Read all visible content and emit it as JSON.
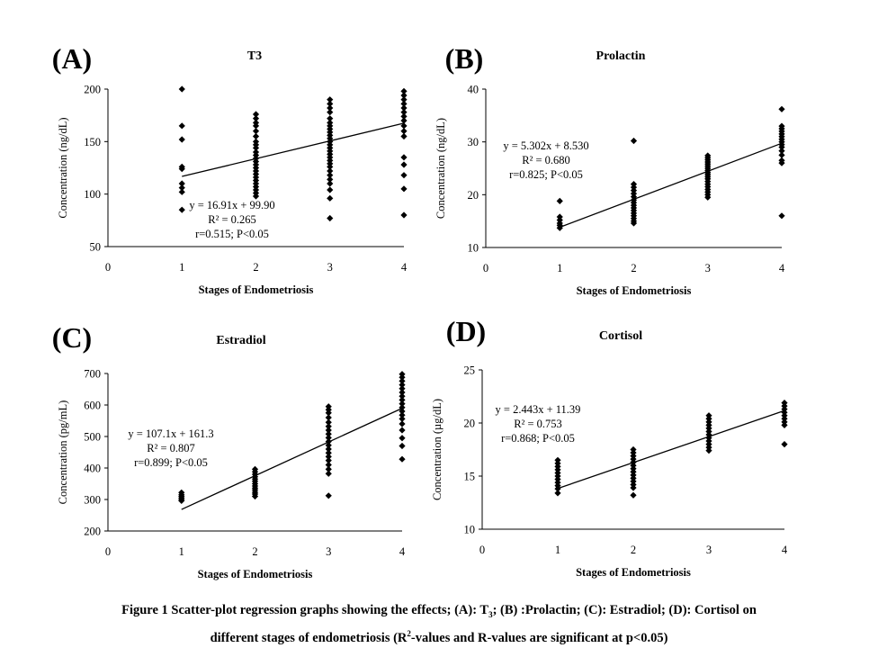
{
  "figure": {
    "caption_line1_a": "Figure 1 Scatter-plot regression graphs showing the effects;  (A): T",
    "caption_line1_sub": "3",
    "caption_line1_b": "; (B) :Prolactin; (C): Estradiol; (D): Cortisol on",
    "caption_line2_a": "different stages of endometriosis (R",
    "caption_line2_sup": "2",
    "caption_line2_b": "-values and R-values are significant at p<0.05)"
  },
  "chart_data": [
    {
      "type": "scatter",
      "panel_label": "(A)",
      "title": "T3",
      "xlabel": "Stages of Endometriosis",
      "ylabel": "Concentration (ng/dL)",
      "xlim": [
        0,
        4
      ],
      "ylim": [
        50,
        200
      ],
      "xticks": [
        0,
        1,
        2,
        3,
        4
      ],
      "yticks": [
        50,
        100,
        150,
        200
      ],
      "points": [
        [
          1,
          200
        ],
        [
          1,
          165
        ],
        [
          1,
          152
        ],
        [
          1,
          126
        ],
        [
          1,
          124
        ],
        [
          1,
          110
        ],
        [
          1,
          106
        ],
        [
          1,
          102
        ],
        [
          1,
          85
        ],
        [
          2,
          176
        ],
        [
          2,
          172
        ],
        [
          2,
          168
        ],
        [
          2,
          165
        ],
        [
          2,
          160
        ],
        [
          2,
          155
        ],
        [
          2,
          150
        ],
        [
          2,
          147
        ],
        [
          2,
          144
        ],
        [
          2,
          140
        ],
        [
          2,
          137
        ],
        [
          2,
          134
        ],
        [
          2,
          131
        ],
        [
          2,
          128
        ],
        [
          2,
          125
        ],
        [
          2,
          122
        ],
        [
          2,
          119
        ],
        [
          2,
          116
        ],
        [
          2,
          113
        ],
        [
          2,
          110
        ],
        [
          2,
          107
        ],
        [
          2,
          104
        ],
        [
          2,
          101
        ],
        [
          2,
          98
        ],
        [
          3,
          190
        ],
        [
          3,
          186
        ],
        [
          3,
          182
        ],
        [
          3,
          178
        ],
        [
          3,
          172
        ],
        [
          3,
          168
        ],
        [
          3,
          165
        ],
        [
          3,
          162
        ],
        [
          3,
          159
        ],
        [
          3,
          156
        ],
        [
          3,
          153
        ],
        [
          3,
          150
        ],
        [
          3,
          147
        ],
        [
          3,
          144
        ],
        [
          3,
          141
        ],
        [
          3,
          138
        ],
        [
          3,
          135
        ],
        [
          3,
          132
        ],
        [
          3,
          129
        ],
        [
          3,
          126
        ],
        [
          3,
          122
        ],
        [
          3,
          118
        ],
        [
          3,
          114
        ],
        [
          3,
          110
        ],
        [
          3,
          104
        ],
        [
          3,
          96
        ],
        [
          3,
          77
        ],
        [
          4,
          198
        ],
        [
          4,
          194
        ],
        [
          4,
          190
        ],
        [
          4,
          186
        ],
        [
          4,
          182
        ],
        [
          4,
          178
        ],
        [
          4,
          174
        ],
        [
          4,
          170
        ],
        [
          4,
          165
        ],
        [
          4,
          160
        ],
        [
          4,
          155
        ],
        [
          4,
          135
        ],
        [
          4,
          128
        ],
        [
          4,
          118
        ],
        [
          4,
          105
        ],
        [
          4,
          80
        ]
      ],
      "trendline": {
        "slope": 16.91,
        "intercept": 99.9,
        "x_range": [
          1,
          4
        ]
      },
      "annotations": [
        "y = 16.91x + 99.90",
        "R² = 0.265",
        "r=0.515; P<0.05"
      ]
    },
    {
      "type": "scatter",
      "panel_label": "(B)",
      "title": "Prolactin",
      "xlabel": "Stages of Endometriosis",
      "ylabel": "Concentration (ng/dL)",
      "xlim": [
        0,
        4
      ],
      "ylim": [
        10,
        40
      ],
      "xticks": [
        0,
        1,
        2,
        3,
        4
      ],
      "yticks": [
        10,
        20,
        30,
        40
      ],
      "points": [
        [
          1,
          18.8
        ],
        [
          1,
          15.8
        ],
        [
          1,
          15.2
        ],
        [
          1,
          14.6
        ],
        [
          1,
          14.2
        ],
        [
          1,
          13.7
        ],
        [
          2,
          30.2
        ],
        [
          2,
          22
        ],
        [
          2,
          21.4
        ],
        [
          2,
          20.8
        ],
        [
          2,
          20.2
        ],
        [
          2,
          19.6
        ],
        [
          2,
          19
        ],
        [
          2,
          18.5
        ],
        [
          2,
          18
        ],
        [
          2,
          17.5
        ],
        [
          2,
          17
        ],
        [
          2,
          16.5
        ],
        [
          2,
          16
        ],
        [
          2,
          15.5
        ],
        [
          2,
          15
        ],
        [
          2,
          14.6
        ],
        [
          3,
          27.4
        ],
        [
          3,
          27
        ],
        [
          3,
          26.6
        ],
        [
          3,
          26.2
        ],
        [
          3,
          25.8
        ],
        [
          3,
          25.4
        ],
        [
          3,
          25
        ],
        [
          3,
          24.6
        ],
        [
          3,
          24.2
        ],
        [
          3,
          23.8
        ],
        [
          3,
          23.4
        ],
        [
          3,
          23
        ],
        [
          3,
          22.5
        ],
        [
          3,
          22
        ],
        [
          3,
          21.5
        ],
        [
          3,
          21
        ],
        [
          3,
          20.5
        ],
        [
          3,
          20
        ],
        [
          3,
          19.5
        ],
        [
          4,
          36.2
        ],
        [
          4,
          33
        ],
        [
          4,
          32.5
        ],
        [
          4,
          32
        ],
        [
          4,
          31.5
        ],
        [
          4,
          31
        ],
        [
          4,
          30.5
        ],
        [
          4,
          30
        ],
        [
          4,
          29.5
        ],
        [
          4,
          29
        ],
        [
          4,
          28.3
        ],
        [
          4,
          27.5
        ],
        [
          4,
          26.5
        ],
        [
          4,
          26
        ],
        [
          4,
          16
        ]
      ],
      "trendline": {
        "slope": 5.302,
        "intercept": 8.53,
        "x_range": [
          1,
          4
        ]
      },
      "annotations": [
        "y = 5.302x + 8.530",
        "R² = 0.680",
        "r=0.825;  P<0.05"
      ]
    },
    {
      "type": "scatter",
      "panel_label": "(C)",
      "title": "Estradiol",
      "xlabel": "Stages of Endometriosis",
      "ylabel": "Concentration (pg/mL)",
      "xlim": [
        0,
        4
      ],
      "ylim": [
        200,
        700
      ],
      "xticks": [
        0,
        1,
        2,
        3,
        4
      ],
      "yticks": [
        200,
        300,
        400,
        500,
        600,
        700
      ],
      "points": [
        [
          1,
          322
        ],
        [
          1,
          315
        ],
        [
          1,
          310
        ],
        [
          1,
          305
        ],
        [
          1,
          300
        ],
        [
          1,
          296
        ],
        [
          2,
          396
        ],
        [
          2,
          388
        ],
        [
          2,
          380
        ],
        [
          2,
          372
        ],
        [
          2,
          365
        ],
        [
          2,
          358
        ],
        [
          2,
          350
        ],
        [
          2,
          343
        ],
        [
          2,
          336
        ],
        [
          2,
          330
        ],
        [
          2,
          323
        ],
        [
          2,
          317
        ],
        [
          2,
          310
        ],
        [
          3,
          595
        ],
        [
          3,
          585
        ],
        [
          3,
          575
        ],
        [
          3,
          560
        ],
        [
          3,
          545
        ],
        [
          3,
          532
        ],
        [
          3,
          520
        ],
        [
          3,
          508
        ],
        [
          3,
          496
        ],
        [
          3,
          484
        ],
        [
          3,
          472
        ],
        [
          3,
          460
        ],
        [
          3,
          448
        ],
        [
          3,
          436
        ],
        [
          3,
          424
        ],
        [
          3,
          410
        ],
        [
          3,
          396
        ],
        [
          3,
          382
        ],
        [
          3,
          312
        ],
        [
          4,
          698
        ],
        [
          4,
          688
        ],
        [
          4,
          676
        ],
        [
          4,
          664
        ],
        [
          4,
          652
        ],
        [
          4,
          640
        ],
        [
          4,
          628
        ],
        [
          4,
          616
        ],
        [
          4,
          604
        ],
        [
          4,
          592
        ],
        [
          4,
          580
        ],
        [
          4,
          568
        ],
        [
          4,
          556
        ],
        [
          4,
          540
        ],
        [
          4,
          520
        ],
        [
          4,
          495
        ],
        [
          4,
          470
        ],
        [
          4,
          428
        ]
      ],
      "trendline": {
        "slope": 107.1,
        "intercept": 161.3,
        "x_range": [
          1,
          4
        ]
      },
      "annotations": [
        "y = 107.1x + 161.3",
        "R² = 0.807",
        "r=0.899;  P<0.05"
      ]
    },
    {
      "type": "scatter",
      "panel_label": "(D)",
      "title": "Cortisol",
      "xlabel": "Stages of Endometriosis",
      "ylabel": "Concentration (µg/dL)",
      "xlim": [
        0,
        4
      ],
      "ylim": [
        10,
        25
      ],
      "xticks": [
        0,
        1,
        2,
        3,
        4
      ],
      "yticks": [
        10,
        15,
        20,
        25
      ],
      "points": [
        [
          1,
          16.5
        ],
        [
          1,
          16.2
        ],
        [
          1,
          15.9
        ],
        [
          1,
          15.6
        ],
        [
          1,
          15.3
        ],
        [
          1,
          15
        ],
        [
          1,
          14.7
        ],
        [
          1,
          14.4
        ],
        [
          1,
          14.1
        ],
        [
          1,
          13.8
        ],
        [
          1,
          13.4
        ],
        [
          2,
          17.5
        ],
        [
          2,
          17.2
        ],
        [
          2,
          16.9
        ],
        [
          2,
          16.6
        ],
        [
          2,
          16.3
        ],
        [
          2,
          16
        ],
        [
          2,
          15.7
        ],
        [
          2,
          15.4
        ],
        [
          2,
          15.1
        ],
        [
          2,
          14.8
        ],
        [
          2,
          14.5
        ],
        [
          2,
          14.2
        ],
        [
          2,
          13.9
        ],
        [
          2,
          13.2
        ],
        [
          3,
          20.7
        ],
        [
          3,
          20.4
        ],
        [
          3,
          20.1
        ],
        [
          3,
          19.8
        ],
        [
          3,
          19.5
        ],
        [
          3,
          19.2
        ],
        [
          3,
          18.9
        ],
        [
          3,
          18.6
        ],
        [
          3,
          18.3
        ],
        [
          3,
          18
        ],
        [
          3,
          17.7
        ],
        [
          3,
          17.4
        ],
        [
          4,
          21.9
        ],
        [
          4,
          21.6
        ],
        [
          4,
          21.3
        ],
        [
          4,
          21
        ],
        [
          4,
          20.7
        ],
        [
          4,
          20.4
        ],
        [
          4,
          20.1
        ],
        [
          4,
          19.8
        ],
        [
          4,
          18
        ]
      ],
      "trendline": {
        "slope": 2.443,
        "intercept": 11.39,
        "x_range": [
          1,
          4
        ]
      },
      "annotations": [
        "y = 2.443x + 11.39",
        "R² = 0.753",
        "r=0.868;  P<0.05"
      ]
    }
  ]
}
